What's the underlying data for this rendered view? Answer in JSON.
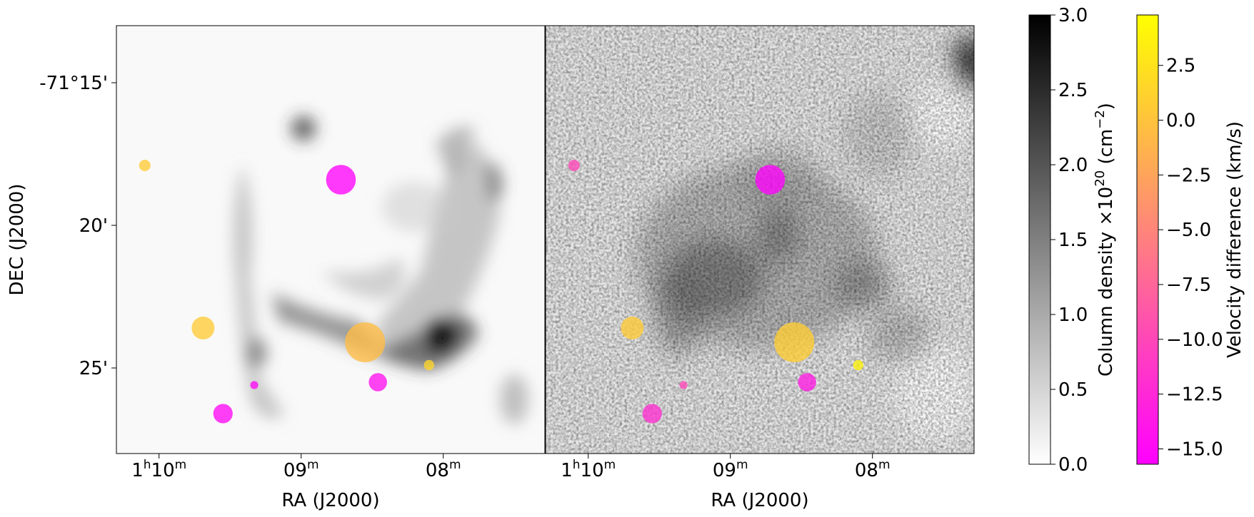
{
  "chart_data": {
    "type": "scatter",
    "background": "column-density-map",
    "panels": [
      {
        "xlabel": "RA (J2000)",
        "ylabel": "DEC (J2000)",
        "x_ticks": [
          {
            "h": "1",
            "m": "10"
          },
          {
            "m": "09"
          },
          {
            "m": "08"
          }
        ],
        "y_ticks": [
          "-71°15'",
          "20'",
          "25'"
        ]
      },
      {
        "xlabel": "RA (J2000)",
        "x_ticks": [
          {
            "h": "1",
            "m": "10"
          },
          {
            "m": "09"
          },
          {
            "m": "08"
          }
        ]
      }
    ],
    "points": [
      {
        "ra_min": 10.1,
        "dec_arcmin": 17.9,
        "size": 1.0,
        "vdiff_left": 0.5,
        "vdiff_right": -10.0
      },
      {
        "ra_min": 8.72,
        "dec_arcmin": 18.4,
        "size": 2.6,
        "vdiff_left": -15.5,
        "vdiff_right": -15.5
      },
      {
        "ra_min": 9.69,
        "dec_arcmin": 23.6,
        "size": 2.0,
        "vdiff_left": 0.5,
        "vdiff_right": 0.5
      },
      {
        "ra_min": 8.55,
        "dec_arcmin": 24.1,
        "size": 3.5,
        "vdiff_left": -0.5,
        "vdiff_right": 0.8
      },
      {
        "ra_min": 8.1,
        "dec_arcmin": 24.9,
        "size": 0.9,
        "vdiff_left": 1.5,
        "vdiff_right": 3.8
      },
      {
        "ra_min": 9.33,
        "dec_arcmin": 25.6,
        "size": 0.7,
        "vdiff_left": -15.0,
        "vdiff_right": -10.0
      },
      {
        "ra_min": 8.46,
        "dec_arcmin": 25.5,
        "size": 1.6,
        "vdiff_left": -14.5,
        "vdiff_right": -13.5
      },
      {
        "ra_min": 9.55,
        "dec_arcmin": 26.6,
        "size": 1.7,
        "vdiff_left": -15.0,
        "vdiff_right": -12.0
      }
    ],
    "colorbars": [
      {
        "label_main": "Column density ×10",
        "label_exp": "20",
        "label_unit": " (cm",
        "label_unit_exp": "−2",
        "label_close": ")",
        "range": [
          0.0,
          3.0
        ],
        "ticks": [
          "0.0",
          "0.5",
          "1.0",
          "1.5",
          "2.0",
          "2.5",
          "3.0"
        ],
        "colors": [
          "#ffffff",
          "#000000"
        ]
      },
      {
        "label": "Velocity difference (km/s)",
        "range": [
          -15.7,
          4.8
        ],
        "ticks": [
          "−15.0",
          "−12.5",
          "−10.0",
          "−7.5",
          "−5.0",
          "−2.5",
          "0.0",
          "2.5"
        ],
        "tick_values": [
          -15.0,
          -12.5,
          -10.0,
          -7.5,
          -5.0,
          -2.5,
          0.0,
          2.5
        ],
        "colors": [
          "#ff00ff",
          "#ffff00"
        ]
      }
    ]
  }
}
